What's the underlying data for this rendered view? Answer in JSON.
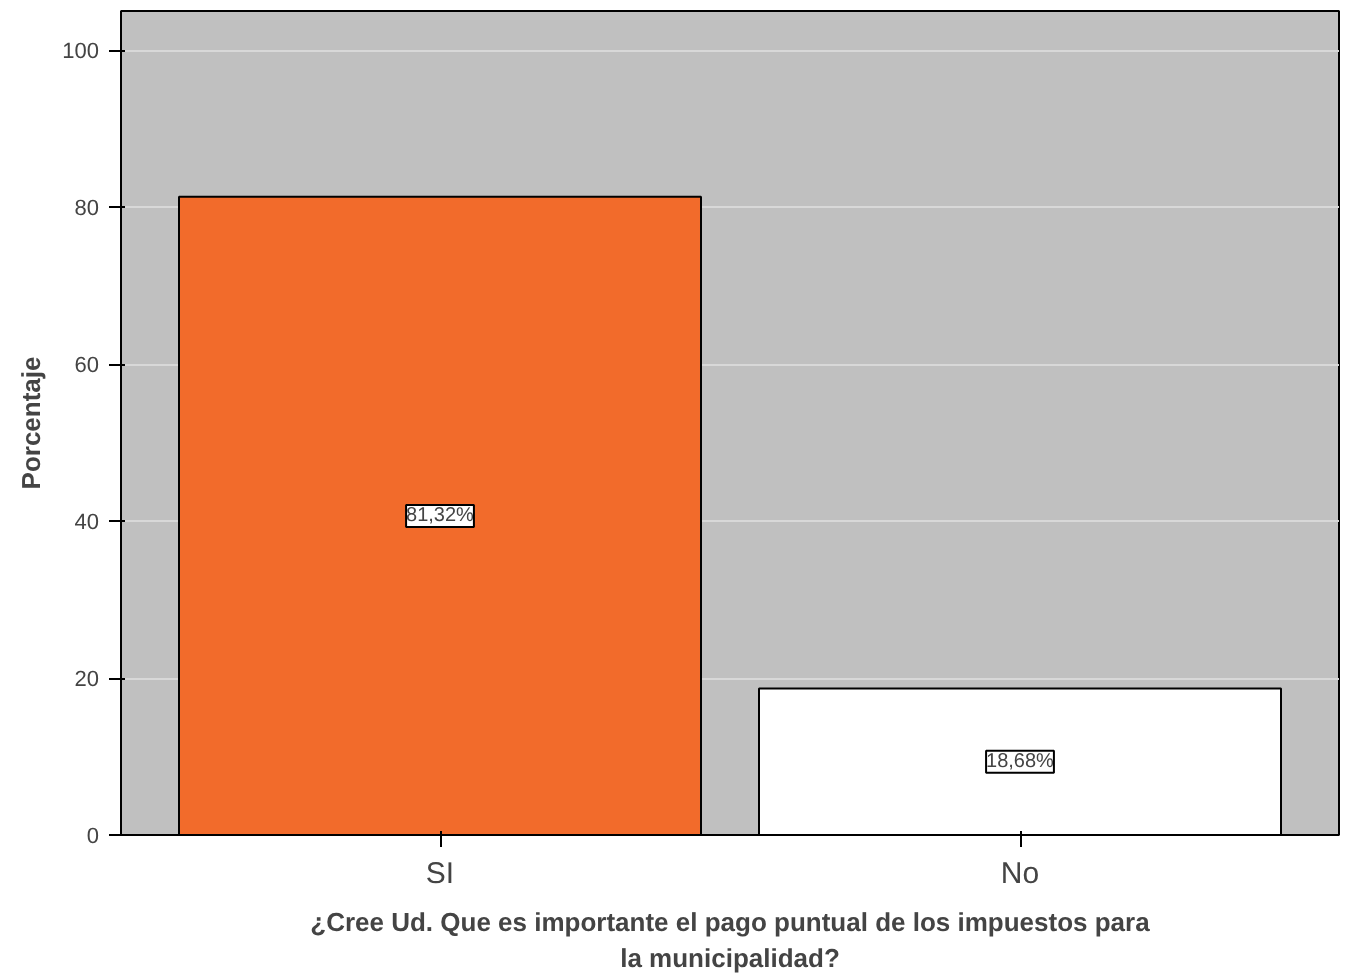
{
  "chart_data": {
    "type": "bar",
    "xlabel": "¿Cree Ud. Que es importante el pago puntual de los impuestos para la municipalidad?",
    "ylabel": "Porcentaje",
    "categories": [
      "SI",
      "No"
    ],
    "values": [
      81.32,
      18.68
    ],
    "colors": [
      "#f26b2b",
      "#ffffff"
    ],
    "value_labels": [
      "81,32%",
      "18,68%"
    ],
    "ylim": [
      0,
      105
    ],
    "yticks": [
      0,
      20,
      40,
      60,
      80,
      100
    ],
    "grid": "y"
  }
}
